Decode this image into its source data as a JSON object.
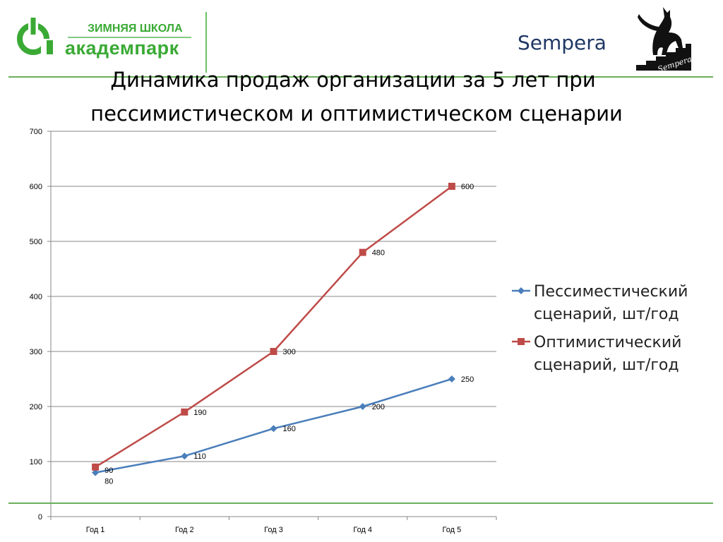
{
  "header": {
    "logo_top": "ЗИМНЯЯ ШКОЛА",
    "logo_bottom": "академпарк",
    "brand": "Sempera",
    "cat_logo_text": "Sempera",
    "title_line1": "Динамика продаж организации за 5 лет при",
    "title_line2": "пессимистическом и оптимистическом сценарии"
  },
  "colors": {
    "logo_green": "#3aaa35",
    "rule_green": "#6aaf5b",
    "pessimistic": "#4a7ebb",
    "optimistic": "#be4b48",
    "grid": "#878787"
  },
  "chart_data": {
    "type": "line",
    "categories": [
      "Год 1",
      "Год 2",
      "Год 3",
      "Год 4",
      "Год 5"
    ],
    "ylim": [
      0,
      700
    ],
    "yticks": [
      0,
      100,
      200,
      300,
      400,
      500,
      600,
      700
    ],
    "grid": "horizontal",
    "legend_position": "right",
    "series": [
      {
        "name": "Пессиместический сценарий, шт/год",
        "marker": "diamond",
        "values": [
          80,
          110,
          160,
          200,
          250
        ]
      },
      {
        "name": "Оптимистический сценарий, шт/год",
        "marker": "square",
        "values": [
          90,
          190,
          300,
          480,
          600
        ]
      }
    ]
  }
}
